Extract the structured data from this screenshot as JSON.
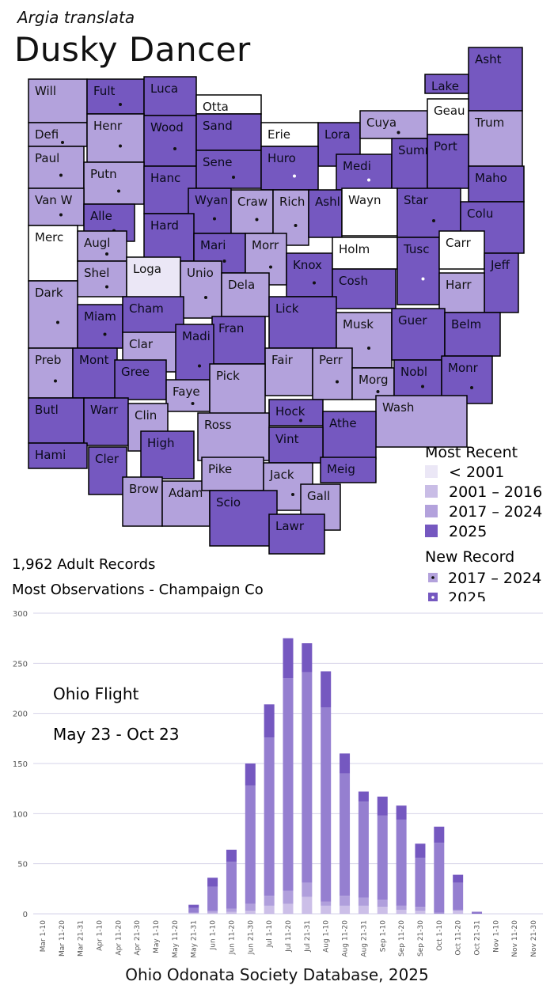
{
  "header": {
    "species": "Argia translata",
    "common_name": "Dusky Dancer"
  },
  "colors": {
    "lt2001": "#ebe7f6",
    "y2001_2016": "#c9bde6",
    "y2017_2024": "#b3a2dc",
    "y2025": "#7558c0",
    "none": "#ffffff",
    "border": "#000000",
    "bar_seg1": "#ccbfe8",
    "bar_seg2": "#b09fdc",
    "bar_seg3": "#957fd0",
    "bar_seg4": "#7558c0",
    "grid": "#d6d3e8"
  },
  "map": {
    "counties": [
      {
        "name": "Will",
        "cat": "2017"
      },
      {
        "name": "Fult",
        "cat": "2025",
        "dot": "2025"
      },
      {
        "name": "Luca",
        "cat": "2025"
      },
      {
        "name": "Otta",
        "cat": "none"
      },
      {
        "name": "Defi",
        "cat": "2017",
        "dot": "2017"
      },
      {
        "name": "Henr",
        "cat": "2017",
        "dot": "2017"
      },
      {
        "name": "Wood",
        "cat": "2025",
        "dot": "2025"
      },
      {
        "name": "Sand",
        "cat": "2025"
      },
      {
        "name": "Erie",
        "cat": "none"
      },
      {
        "name": "Lora",
        "cat": "2025"
      },
      {
        "name": "Cuya",
        "cat": "2017",
        "dot": "2017"
      },
      {
        "name": "Lake",
        "cat": "2025"
      },
      {
        "name": "Asht",
        "cat": "2025"
      },
      {
        "name": "Geau",
        "cat": "none"
      },
      {
        "name": "Trum",
        "cat": "2017"
      },
      {
        "name": "Paul",
        "cat": "2017",
        "dot": "2017"
      },
      {
        "name": "Putn",
        "cat": "2017",
        "dot": "2017"
      },
      {
        "name": "Hanc",
        "cat": "2025"
      },
      {
        "name": "Sene",
        "cat": "2025",
        "dot": "2025"
      },
      {
        "name": "Huro",
        "cat": "2025",
        "dot": "new2025"
      },
      {
        "name": "Medi",
        "cat": "2025",
        "dot": "new2025"
      },
      {
        "name": "Summ",
        "cat": "2025"
      },
      {
        "name": "Port",
        "cat": "2025"
      },
      {
        "name": "Maho",
        "cat": "2025"
      },
      {
        "name": "Van W",
        "cat": "2017",
        "dot": "2017"
      },
      {
        "name": "Alle",
        "cat": "2025",
        "dot": "2025"
      },
      {
        "name": "Wyan",
        "cat": "2025",
        "dot": "2025"
      },
      {
        "name": "Craw",
        "cat": "2017",
        "dot": "2017"
      },
      {
        "name": "Rich",
        "cat": "2017",
        "dot": "2017"
      },
      {
        "name": "Ashl",
        "cat": "2025"
      },
      {
        "name": "Wayn",
        "cat": "none"
      },
      {
        "name": "Star",
        "cat": "2025",
        "dot": "2025"
      },
      {
        "name": "Colu",
        "cat": "2025"
      },
      {
        "name": "Merc",
        "cat": "none"
      },
      {
        "name": "Augl",
        "cat": "2017",
        "dot": "2017"
      },
      {
        "name": "Hard",
        "cat": "2025"
      },
      {
        "name": "Mari",
        "cat": "2025",
        "dot": "2025"
      },
      {
        "name": "Morr",
        "cat": "2017",
        "dot": "2017"
      },
      {
        "name": "Knox",
        "cat": "2025",
        "dot": "2025"
      },
      {
        "name": "Holm",
        "cat": "none"
      },
      {
        "name": "Tusc",
        "cat": "2025",
        "dot": "new2025"
      },
      {
        "name": "Carr",
        "cat": "none"
      },
      {
        "name": "Jeff",
        "cat": "2025"
      },
      {
        "name": "Shel",
        "cat": "2017",
        "dot": "2017"
      },
      {
        "name": "Loga",
        "cat": "lt2001"
      },
      {
        "name": "Unio",
        "cat": "2017",
        "dot": "2017"
      },
      {
        "name": "Dela",
        "cat": "2017"
      },
      {
        "name": "Cosh",
        "cat": "2025"
      },
      {
        "name": "Harr",
        "cat": "2017"
      },
      {
        "name": "Dark",
        "cat": "2017",
        "dot": "2017"
      },
      {
        "name": "Miam",
        "cat": "2025",
        "dot": "2025"
      },
      {
        "name": "Cham",
        "cat": "2025"
      },
      {
        "name": "Lick",
        "cat": "2025"
      },
      {
        "name": "Musk",
        "cat": "2017",
        "dot": "2017"
      },
      {
        "name": "Guer",
        "cat": "2025"
      },
      {
        "name": "Belm",
        "cat": "2025"
      },
      {
        "name": "Clar",
        "cat": "2017"
      },
      {
        "name": "Fran",
        "cat": "2025"
      },
      {
        "name": "Madi",
        "cat": "2025",
        "dot": "2025"
      },
      {
        "name": "Fair",
        "cat": "2017"
      },
      {
        "name": "Perr",
        "cat": "2017",
        "dot": "2017"
      },
      {
        "name": "Morg",
        "cat": "2017",
        "dot": "2017"
      },
      {
        "name": "Nobl",
        "cat": "2025",
        "dot": "2025"
      },
      {
        "name": "Monr",
        "cat": "2025",
        "dot": "2025"
      },
      {
        "name": "Preb",
        "cat": "2017",
        "dot": "2017"
      },
      {
        "name": "Mont",
        "cat": "2025"
      },
      {
        "name": "Gree",
        "cat": "2025"
      },
      {
        "name": "Faye",
        "cat": "2017",
        "dot": "2017"
      },
      {
        "name": "Pick",
        "cat": "2017"
      },
      {
        "name": "Hock",
        "cat": "2025",
        "dot": "2025"
      },
      {
        "name": "Wash",
        "cat": "2017"
      },
      {
        "name": "Butl",
        "cat": "2025"
      },
      {
        "name": "Warr",
        "cat": "2025"
      },
      {
        "name": "Clin",
        "cat": "2017",
        "dot": "2017"
      },
      {
        "name": "Ross",
        "cat": "2017"
      },
      {
        "name": "Athe",
        "cat": "2025"
      },
      {
        "name": "Vint",
        "cat": "2025"
      },
      {
        "name": "Hami",
        "cat": "2025"
      },
      {
        "name": "Cler",
        "cat": "2025"
      },
      {
        "name": "High",
        "cat": "2025"
      },
      {
        "name": "Meig",
        "cat": "2025"
      },
      {
        "name": "Brow",
        "cat": "2017"
      },
      {
        "name": "Adam",
        "cat": "2017"
      },
      {
        "name": "Pike",
        "cat": "2017"
      },
      {
        "name": "Jack",
        "cat": "2017",
        "dot": "2017"
      },
      {
        "name": "Gall",
        "cat": "2017"
      },
      {
        "name": "Scio",
        "cat": "2025"
      },
      {
        "name": "Lawr",
        "cat": "2025"
      }
    ]
  },
  "legend": {
    "most_recent_title": "Most Recent",
    "items": [
      {
        "label": "< 2001",
        "cat": "lt2001"
      },
      {
        "label": "2001 – 2016",
        "cat": "2001"
      },
      {
        "label": "2017 – 2024",
        "cat": "2017"
      },
      {
        "label": "2025",
        "cat": "2025"
      }
    ],
    "new_record_title": "New Record",
    "new_items": [
      {
        "label": "2017 – 2024",
        "dot": "2017"
      },
      {
        "label": "2025",
        "dot": "2025"
      }
    ]
  },
  "stats": {
    "records": "1,962 Adult Records",
    "most_obs": "Most Observations - Champaign Co"
  },
  "chart_data": {
    "type": "bar",
    "stacked": true,
    "ylim": [
      0,
      300
    ],
    "yticks": [
      0,
      50,
      100,
      150,
      200,
      250,
      300
    ],
    "grid": true,
    "annotation_title": "Ohio Flight",
    "annotation_range": "May 23 - Oct 23",
    "categories": [
      "Mar 1-10",
      "Mar 11-20",
      "Mar 21-31",
      "Apr 1-10",
      "Apr 11-20",
      "Apr 21-30",
      "May 1-10",
      "May 11-20",
      "May 21-31",
      "Jun 1-10",
      "Jun 11-20",
      "Jun 21-30",
      "Jul 1-10",
      "Jul 11-20",
      "Jul 21-31",
      "Aug 1-10",
      "Aug 11-20",
      "Aug 21-31",
      "Sep 1-10",
      "Sep 11-20",
      "Sep 21-30",
      "Oct 1-10",
      "Oct 11-20",
      "Oct 21-31",
      "Nov 1-10",
      "Nov 11-20",
      "Nov 21-30"
    ],
    "series": [
      {
        "values": [
          0,
          0,
          0,
          0,
          0,
          0,
          0,
          0,
          1,
          1,
          2,
          3,
          8,
          10,
          17,
          8,
          8,
          8,
          7,
          4,
          3,
          0,
          3,
          0,
          0,
          0,
          0
        ]
      },
      {
        "values": [
          0,
          0,
          0,
          0,
          0,
          0,
          0,
          0,
          0,
          2,
          3,
          7,
          10,
          13,
          14,
          4,
          10,
          8,
          7,
          4,
          4,
          1,
          1,
          0,
          0,
          0,
          0
        ]
      },
      {
        "values": [
          0,
          0,
          0,
          0,
          0,
          0,
          0,
          0,
          5,
          24,
          47,
          118,
          158,
          212,
          210,
          194,
          122,
          96,
          84,
          86,
          49,
          70,
          27,
          1,
          0,
          0,
          0
        ]
      },
      {
        "values": [
          0,
          0,
          0,
          0,
          0,
          0,
          0,
          0,
          3,
          9,
          12,
          22,
          33,
          40,
          29,
          36,
          20,
          10,
          19,
          14,
          14,
          16,
          8,
          1,
          0,
          0,
          0
        ]
      }
    ],
    "totals": [
      0,
      0,
      0,
      0,
      0,
      0,
      0,
      0,
      9,
      36,
      64,
      150,
      209,
      275,
      270,
      242,
      160,
      122,
      117,
      108,
      70,
      87,
      39,
      2,
      0,
      0,
      0
    ]
  },
  "footer": {
    "source": "Ohio Odonata Society Database, 2025"
  }
}
